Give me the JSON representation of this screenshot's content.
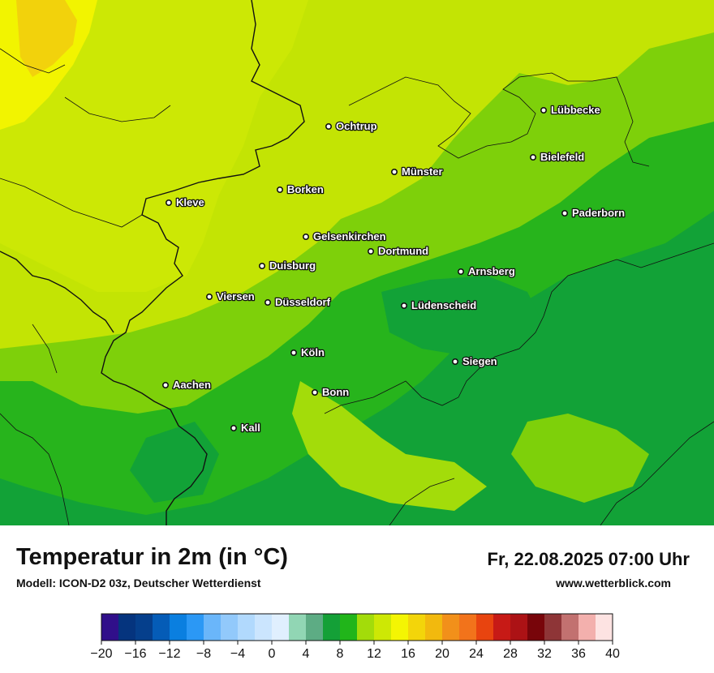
{
  "title": "Temperatur in 2m (in °C)",
  "model": "Modell: ICON-D2 03z, Deutscher Wetterdienst",
  "valid_time": "Fr, 22.08.2025 07:00 Uhr",
  "website": "www.wetterblick.com",
  "cities": [
    {
      "name": "Lübbecke"
    },
    {
      "name": "Ochtrup"
    },
    {
      "name": "Bielefeld"
    },
    {
      "name": "Münster"
    },
    {
      "name": "Borken"
    },
    {
      "name": "Kleve"
    },
    {
      "name": "Paderborn"
    },
    {
      "name": "Gelsenkirchen"
    },
    {
      "name": "Dortmund"
    },
    {
      "name": "Duisburg"
    },
    {
      "name": "Arnsberg"
    },
    {
      "name": "Viersen"
    },
    {
      "name": "Düsseldorf"
    },
    {
      "name": "Lüdenscheid"
    },
    {
      "name": "Köln"
    },
    {
      "name": "Siegen"
    },
    {
      "name": "Aachen"
    },
    {
      "name": "Bonn"
    },
    {
      "name": "Kall"
    }
  ],
  "legend": {
    "ticks": [
      "−20",
      "−16",
      "−12",
      "−8",
      "−4",
      "0",
      "4",
      "8",
      "12",
      "16",
      "20",
      "24",
      "28",
      "32",
      "36",
      "40"
    ],
    "colors": [
      "#300f8a",
      "#05347e",
      "#053f8c",
      "#055cb7",
      "#0a7fe0",
      "#2b98f5",
      "#6ab6fa",
      "#92c9fb",
      "#b1d9fd",
      "#cbe5fe",
      "#e0effe",
      "#91d6b4",
      "#5dac84",
      "#14a037",
      "#21b51a",
      "#a3dc0a",
      "#cde805",
      "#f4f503",
      "#f3d50a",
      "#f2b90e",
      "#f2901a",
      "#f2731b",
      "#e8440f",
      "#c71a16",
      "#ac1215",
      "#78050a",
      "#8e3537",
      "#c27170",
      "#f3b0ad",
      "#fde3e2"
    ]
  },
  "map_colors": {
    "base": "#7ed00a",
    "yellow_green": "#cce804",
    "green": "#2cb51c",
    "dark_green": "#11a237",
    "yellow": "#f0f300",
    "orange": "#f2d20c"
  }
}
